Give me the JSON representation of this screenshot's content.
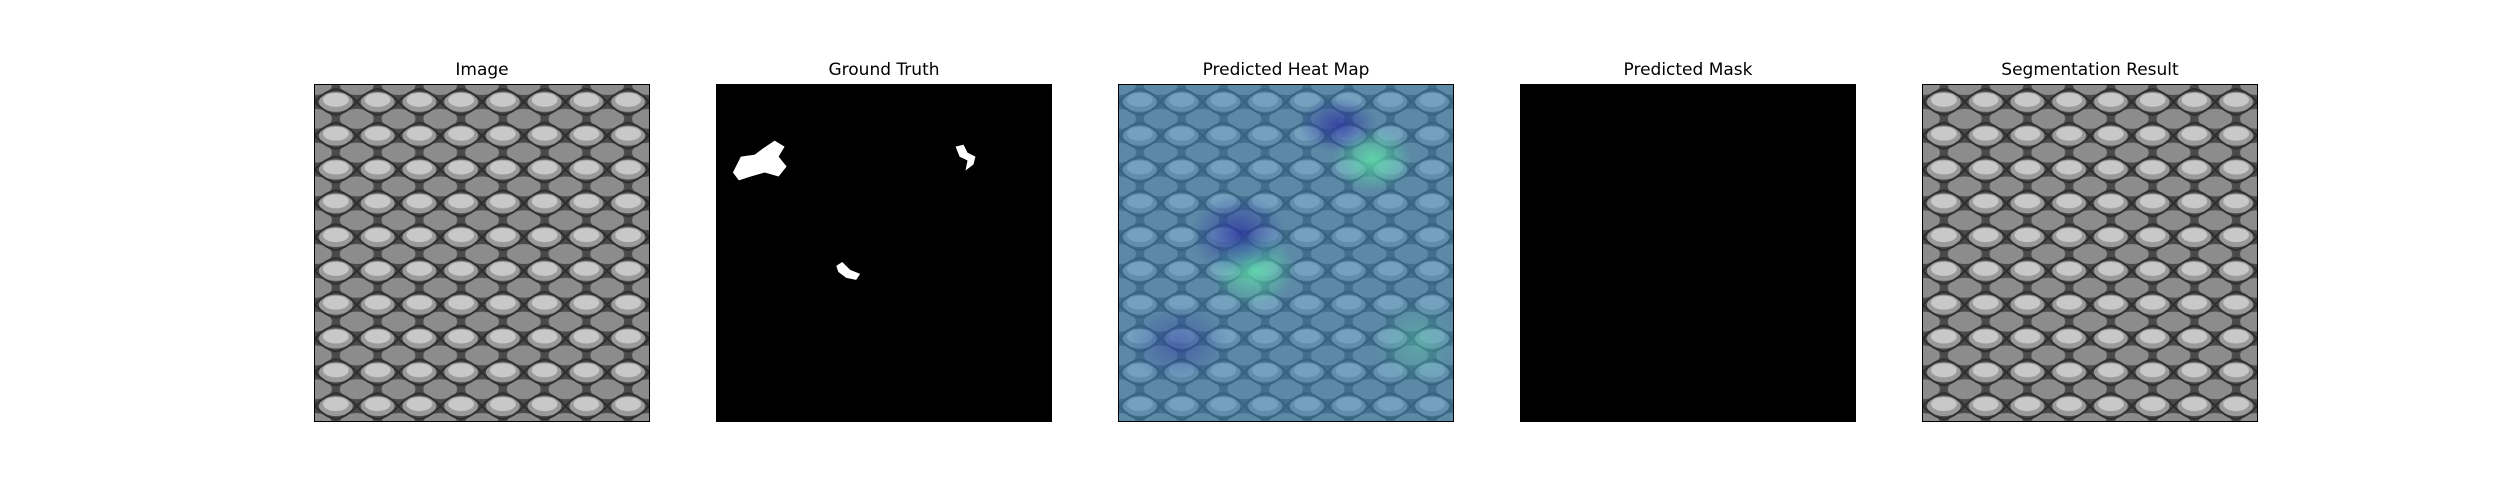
{
  "figure": {
    "panels": [
      {
        "title": "Image",
        "content": "grayscale-mesh-texture"
      },
      {
        "title": "Ground Truth",
        "content": "binary-mask-with-defects"
      },
      {
        "title": "Predicted Heat Map",
        "content": "heatmap-overlay-on-mesh"
      },
      {
        "title": "Predicted Mask",
        "content": "empty-black-mask"
      },
      {
        "title": "Segmentation Result",
        "content": "grayscale-mesh-texture"
      }
    ]
  },
  "colors": {
    "mask_background": "#000000",
    "mask_defect": "#ffffff",
    "heatmap_base": "#3f7fbf",
    "heatmap_hot": "#4fd1a0",
    "heatmap_cold": "#2c3fa8"
  }
}
